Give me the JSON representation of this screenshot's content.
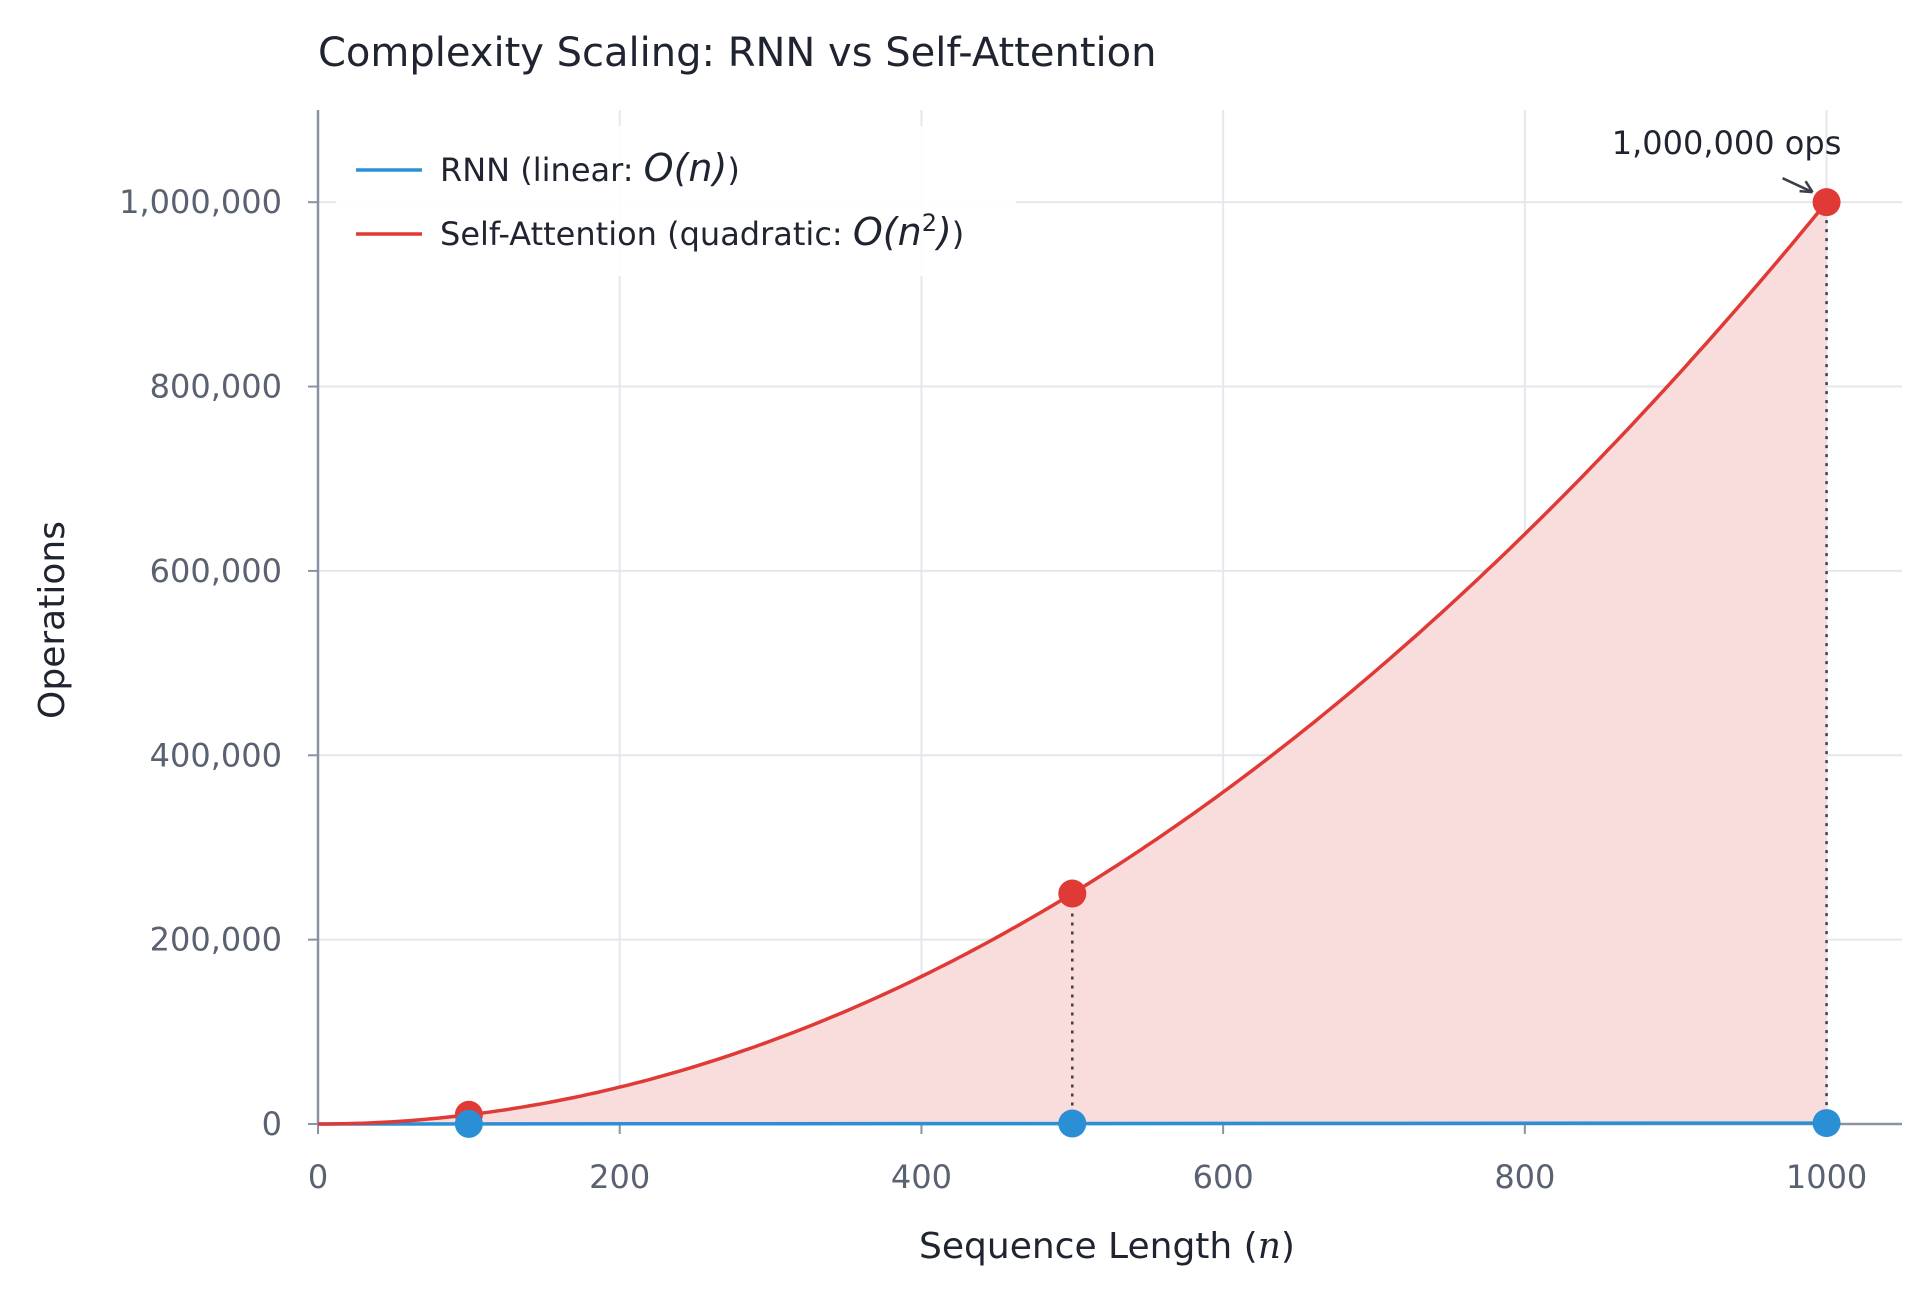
{
  "chart_data": {
    "type": "line",
    "title": "Complexity Scaling: RNN vs Self-Attention",
    "xlabel": "Sequence Length (n)",
    "ylabel": "Operations",
    "xlim": [
      0,
      1050
    ],
    "ylim": [
      0,
      1100000
    ],
    "x_ticks": [
      0,
      200,
      400,
      600,
      800,
      1000
    ],
    "x_tick_labels": [
      "0",
      "200",
      "400",
      "600",
      "800",
      "1000"
    ],
    "y_ticks": [
      0,
      200000,
      400000,
      600000,
      800000,
      1000000
    ],
    "y_tick_labels": [
      "0",
      "200,000",
      "400,000",
      "600,000",
      "800,000",
      "1,000,000"
    ],
    "grid": true,
    "legend_position": "top-left",
    "series": [
      {
        "name": "RNN (linear: O(n))",
        "legend_prefix": "RNN (linear: ",
        "legend_math": "O(n)",
        "legend_suffix": ")",
        "function": "linear",
        "color": "#2b8fd6",
        "x": [
          0,
          1000
        ],
        "y": [
          0,
          1000
        ],
        "markers": [
          {
            "x": 100,
            "y": 100
          },
          {
            "x": 500,
            "y": 500
          },
          {
            "x": 1000,
            "y": 1000
          }
        ]
      },
      {
        "name": "Self-Attention (quadratic: O(n^2))",
        "legend_prefix": "Self-Attention (quadratic: ",
        "legend_math": "O(n",
        "legend_sup": "2",
        "legend_math_close": ")",
        "legend_suffix": ")",
        "function": "quadratic",
        "color": "#e03a37",
        "fill_color": "#f9dcdc",
        "x": [
          0,
          1000
        ],
        "y": [
          0,
          1000000
        ],
        "markers": [
          {
            "x": 100,
            "y": 10000
          },
          {
            "x": 500,
            "y": 250000
          },
          {
            "x": 1000,
            "y": 1000000
          }
        ]
      }
    ],
    "dotted_lines": [
      {
        "x": 500,
        "y_from": 500,
        "y_to": 250000
      },
      {
        "x": 1000,
        "y_from": 1000,
        "y_to": 1000000
      }
    ],
    "annotations": [
      {
        "text": "1,000,000 ops",
        "x": 1000,
        "y": 1000000
      }
    ]
  }
}
